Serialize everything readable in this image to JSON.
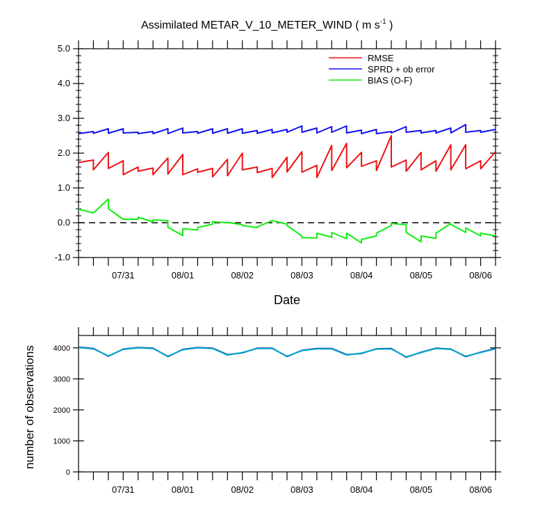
{
  "chart_data": [
    {
      "type": "line",
      "title": "Assimilated METAR_V_10_METER_WIND ( m s",
      "title_superscript": "-1",
      "title_close": " )",
      "xlabel": "Date",
      "ylabel": "",
      "ylim": [
        -1.0,
        5.0
      ],
      "yticks": [
        -1.0,
        0.0,
        1.0,
        2.0,
        3.0,
        4.0,
        5.0
      ],
      "ytick_labels": [
        "-1.0",
        "0.0",
        "1.0",
        "2.0",
        "3.0",
        "4.0",
        "5.0"
      ],
      "xlim": [
        0,
        14
      ],
      "xticks_major": [
        1.5,
        3.5,
        5.5,
        7.5,
        9.5,
        11.5,
        13.5
      ],
      "xtick_labels": [
        "07/31",
        "08/01",
        "08/02",
        "08/03",
        "08/04",
        "08/05",
        "08/06"
      ],
      "xticks_minor": [
        0,
        0.5,
        1,
        1.5,
        2,
        2.5,
        3,
        3.5,
        4,
        4.5,
        5,
        5.5,
        6,
        6.5,
        7,
        7.5,
        8,
        8.5,
        9,
        9.5,
        10,
        10.5,
        11,
        11.5,
        12,
        12.5,
        13,
        13.5,
        14
      ],
      "reference_line": 0.0,
      "legend_position": "top-right",
      "series": [
        {
          "name": "RMSE",
          "color": "#ee1111",
          "x": [
            0,
            0.5,
            0.5,
            1.0,
            1.0,
            1.5,
            1.5,
            2.0,
            2.0,
            2.5,
            2.5,
            3.0,
            3.0,
            3.5,
            3.5,
            4.0,
            4.0,
            4.5,
            4.5,
            5.0,
            5.0,
            5.5,
            5.5,
            6.0,
            6.0,
            6.5,
            6.5,
            7.0,
            7.0,
            7.5,
            7.5,
            8.0,
            8.0,
            8.5,
            8.5,
            9.0,
            9.0,
            9.5,
            9.5,
            10.0,
            10.0,
            10.5,
            10.5,
            11.0,
            11.0,
            11.5,
            11.5,
            12.0,
            12.0,
            12.5,
            12.5,
            13.0,
            13.0,
            13.5,
            13.5,
            14.0
          ],
          "values": [
            1.73,
            1.8,
            1.52,
            2.02,
            1.56,
            1.78,
            1.38,
            1.6,
            1.48,
            1.57,
            1.38,
            1.86,
            1.4,
            1.96,
            1.38,
            1.55,
            1.45,
            1.56,
            1.32,
            1.82,
            1.35,
            2.0,
            1.52,
            1.6,
            1.44,
            1.56,
            1.3,
            1.88,
            1.46,
            2.04,
            1.45,
            1.65,
            1.3,
            2.22,
            1.5,
            2.28,
            1.58,
            2.02,
            1.62,
            1.78,
            1.5,
            2.5,
            1.6,
            1.8,
            1.48,
            2.02,
            1.52,
            1.78,
            1.48,
            2.24,
            1.52,
            2.24,
            1.55,
            1.78,
            1.55,
            2.04
          ]
        },
        {
          "name": "SPRD + ob error",
          "color": "#1111ee",
          "x": [
            0,
            0.5,
            0.5,
            1.0,
            1.0,
            1.5,
            1.5,
            2.0,
            2.0,
            2.5,
            2.5,
            3.0,
            3.0,
            3.5,
            3.5,
            4.0,
            4.0,
            4.5,
            4.5,
            5.0,
            5.0,
            5.5,
            5.5,
            6.0,
            6.0,
            6.5,
            6.5,
            7.0,
            7.0,
            7.5,
            7.5,
            8.0,
            8.0,
            8.5,
            8.5,
            9.0,
            9.0,
            9.5,
            9.5,
            10.0,
            10.0,
            10.5,
            10.5,
            11.0,
            11.0,
            11.5,
            11.5,
            12.0,
            12.0,
            12.5,
            12.5,
            13.0,
            13.0,
            13.5,
            13.5,
            14.0
          ],
          "values": [
            2.56,
            2.62,
            2.57,
            2.7,
            2.57,
            2.7,
            2.58,
            2.6,
            2.56,
            2.62,
            2.56,
            2.7,
            2.56,
            2.72,
            2.58,
            2.62,
            2.57,
            2.7,
            2.57,
            2.7,
            2.57,
            2.7,
            2.57,
            2.65,
            2.57,
            2.68,
            2.58,
            2.68,
            2.6,
            2.78,
            2.6,
            2.72,
            2.58,
            2.76,
            2.6,
            2.78,
            2.58,
            2.66,
            2.56,
            2.68,
            2.56,
            2.62,
            2.58,
            2.76,
            2.6,
            2.65,
            2.58,
            2.65,
            2.58,
            2.72,
            2.58,
            2.82,
            2.6,
            2.65,
            2.6,
            2.68
          ]
        },
        {
          "name": "BIAS (O-F)",
          "color": "#11ee11",
          "x": [
            0,
            0.5,
            0.5,
            1.0,
            1.0,
            1.5,
            1.5,
            2.0,
            2.0,
            2.5,
            2.5,
            3.0,
            3.0,
            3.5,
            3.5,
            4.0,
            4.0,
            4.5,
            4.5,
            5.0,
            5.0,
            5.5,
            5.5,
            6.0,
            6.0,
            6.5,
            6.5,
            7.0,
            7.0,
            7.5,
            7.5,
            8.0,
            8.0,
            8.5,
            8.5,
            9.0,
            9.0,
            9.5,
            9.5,
            10.0,
            10.0,
            10.5,
            10.5,
            11.0,
            11.0,
            11.5,
            11.5,
            12.0,
            12.0,
            12.5,
            12.5,
            13.0,
            13.0,
            13.5,
            13.5,
            14.0
          ],
          "values": [
            0.39,
            0.28,
            0.28,
            0.68,
            0.4,
            0.1,
            0.1,
            0.1,
            0.16,
            0.02,
            0.08,
            0.06,
            -0.13,
            -0.37,
            -0.17,
            -0.21,
            -0.14,
            -0.04,
            0.03,
            0.0,
            0.01,
            -0.06,
            -0.08,
            -0.14,
            -0.12,
            0.06,
            0.06,
            -0.04,
            -0.08,
            -0.38,
            -0.43,
            -0.44,
            -0.3,
            -0.42,
            -0.28,
            -0.46,
            -0.3,
            -0.58,
            -0.48,
            -0.38,
            -0.3,
            -0.08,
            -0.02,
            -0.06,
            -0.28,
            -0.55,
            -0.38,
            -0.45,
            -0.3,
            -0.02,
            -0.05,
            -0.28,
            -0.15,
            -0.38,
            -0.3,
            -0.38
          ]
        }
      ]
    },
    {
      "type": "line",
      "title": "",
      "xlabel": "",
      "ylabel": "number of observations",
      "ylim": [
        0,
        4400
      ],
      "yticks": [
        0,
        1000,
        2000,
        3000,
        4000
      ],
      "ytick_labels": [
        "0",
        "1000",
        "2000",
        "3000",
        "4000"
      ],
      "xlim": [
        0,
        14
      ],
      "xticks_major": [
        1.5,
        3.5,
        5.5,
        7.5,
        9.5,
        11.5,
        13.5
      ],
      "xtick_labels": [
        "07/31",
        "08/01",
        "08/02",
        "08/03",
        "08/04",
        "08/05",
        "08/06"
      ],
      "xticks_minor": [
        0,
        0.5,
        1,
        1.5,
        2,
        2.5,
        3,
        3.5,
        4,
        4.5,
        5,
        5.5,
        6,
        6.5,
        7,
        7.5,
        8,
        8.5,
        9,
        9.5,
        10,
        10.5,
        11,
        11.5,
        12,
        12.5,
        13,
        13.5,
        14
      ],
      "series": [
        {
          "name": "",
          "color": "#000088",
          "x": [
            0,
            0.5,
            1.0,
            1.5,
            2.0,
            2.5,
            3.0,
            3.5,
            4.0,
            4.5,
            5.0,
            5.5,
            6.0,
            6.5,
            7.0,
            7.5,
            8.0,
            8.5,
            9.0,
            9.5,
            10.0,
            10.5,
            11.0,
            11.5,
            12.0,
            12.5,
            13.0,
            13.5,
            14.0
          ],
          "values": [
            4020,
            3980,
            3730,
            3960,
            4010,
            3990,
            3720,
            3950,
            4010,
            3990,
            3780,
            3840,
            3990,
            3990,
            3720,
            3920,
            3980,
            3980,
            3780,
            3820,
            3970,
            3980,
            3700,
            3860,
            3990,
            3960,
            3720,
            3860,
            3980
          ]
        },
        {
          "name": "",
          "color": "#00aacc",
          "x": [
            0,
            0.5,
            1.0,
            1.5,
            2.0,
            2.5,
            3.0,
            3.5,
            4.0,
            4.5,
            5.0,
            5.5,
            6.0,
            6.5,
            7.0,
            7.5,
            8.0,
            8.5,
            9.0,
            9.5,
            10.0,
            10.5,
            11.0,
            11.5,
            12.0,
            12.5,
            13.0,
            13.5,
            14.0
          ],
          "values": [
            4010,
            3970,
            3740,
            3950,
            4000,
            3980,
            3730,
            3940,
            4000,
            3980,
            3770,
            3850,
            3980,
            3980,
            3730,
            3910,
            3970,
            3970,
            3770,
            3830,
            3960,
            3970,
            3710,
            3850,
            3980,
            3950,
            3730,
            3850,
            3970
          ]
        }
      ]
    }
  ]
}
